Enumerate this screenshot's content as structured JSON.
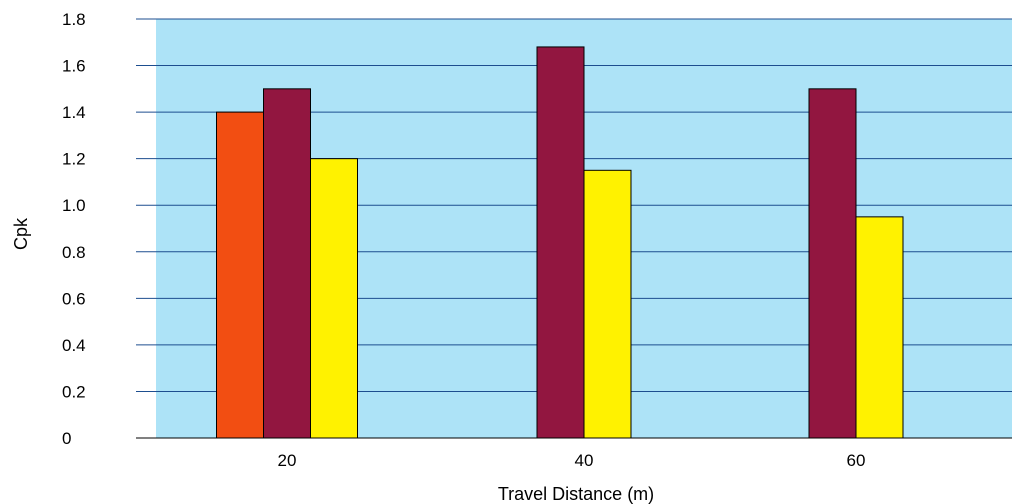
{
  "chart_data": {
    "type": "bar",
    "title": "",
    "xlabel": "Travel Distance (m)",
    "ylabel": "Cpk",
    "categories": [
      "20",
      "40",
      "60"
    ],
    "ylim": [
      0,
      1.8
    ],
    "yticks": [
      "0",
      "0.2",
      "0.4",
      "0.6",
      "0.8",
      "1.0",
      "1.2",
      "1.4",
      "1.6",
      "1.8"
    ],
    "grid": true,
    "legend": "none",
    "series": [
      {
        "color": "#F24E12",
        "values": [
          1.4,
          null,
          null
        ]
      },
      {
        "color": "#921640",
        "values": [
          1.5,
          1.68,
          1.5
        ]
      },
      {
        "color": "#FFF200",
        "values": [
          1.2,
          1.15,
          0.95
        ]
      }
    ],
    "colors": {
      "plot_background": "#ADE3F7",
      "gridline": "#1D4E8F",
      "bar_outline": "#000000"
    }
  }
}
